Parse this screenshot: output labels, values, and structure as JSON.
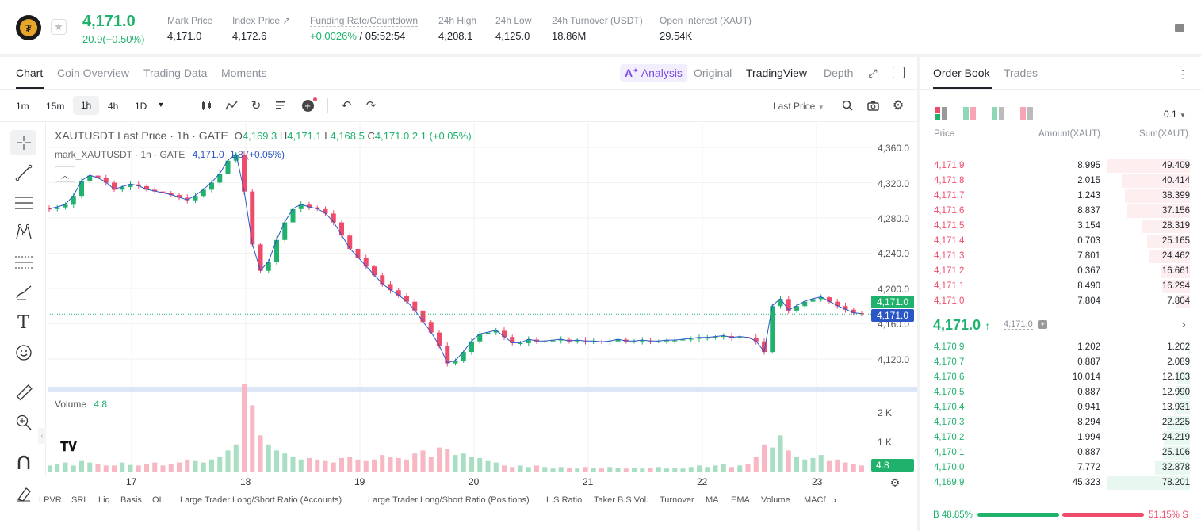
{
  "header": {
    "price": "4,171.0",
    "change": "20.9(+0.50%)",
    "stats": [
      {
        "label": "Mark Price",
        "value": "4,171.0"
      },
      {
        "label": "Index Price",
        "value": "4,172.6"
      },
      {
        "label": "Funding Rate/Countdown",
        "value_rate": "+0.0026%",
        "value_countdown": "/ 05:52:54"
      },
      {
        "label": "24h High",
        "value": "4,208.1"
      },
      {
        "label": "24h Low",
        "value": "4,125.0"
      },
      {
        "label": "24h Turnover (USDT)",
        "value": "18.86M"
      },
      {
        "label": "Open Interest (XAUT)",
        "value": "29.54K"
      }
    ]
  },
  "chart_panel": {
    "tabs": [
      "Chart",
      "Coin Overview",
      "Trading Data",
      "Moments"
    ],
    "views": [
      "Analysis",
      "Original",
      "TradingView",
      "Depth"
    ],
    "intervals": [
      "1m",
      "15m",
      "1h",
      "4h",
      "1D"
    ],
    "price_type": "Last Price",
    "legend_main": {
      "symbol": "XAUTUSDT Last Price · 1h · GATE",
      "o": "4,169.3",
      "h": "4,171.1",
      "l": "4,168.5",
      "c": "4,171.0",
      "chg": "2.1 (+0.05%)"
    },
    "legend_mark": {
      "symbol": "mark_XAUTUSDT · 1h · GATE",
      "val": "4,171.0",
      "chg": "1.8 (+0.05%)"
    },
    "volume_label": "Volume",
    "volume_value": "4.8",
    "price_tag_last": "4,171.0",
    "price_tag_mark": "4,171.0",
    "volume_tag": "4.8",
    "indicators": [
      "LPVR",
      "SRL",
      "Liq",
      "Basis",
      "OI",
      "Large Trader Long/Short Ratio (Accounts)",
      "Large Trader Long/Short Ratio (Positions)",
      "L.S Ratio",
      "Taker B.S Vol.",
      "Turnover",
      "MA",
      "EMA",
      "Volume",
      "MACD"
    ]
  },
  "chart_data": {
    "type": "candlestick",
    "y_ticks": [
      "4,360.0",
      "4,320.0",
      "4,280.0",
      "4,240.0",
      "4,200.0",
      "4,160.0",
      "4,120.0"
    ],
    "ylim": [
      4110,
      4370
    ],
    "x_ticks": [
      "17",
      "18",
      "19",
      "20",
      "21",
      "22",
      "23"
    ],
    "volume_ticks": [
      "2 K",
      "1 K"
    ],
    "close_path": [
      4290,
      4292,
      4295,
      4305,
      4322,
      4328,
      4325,
      4320,
      4312,
      4315,
      4318,
      4316,
      4312,
      4310,
      4308,
      4306,
      4303,
      4300,
      4305,
      4312,
      4320,
      4330,
      4345,
      4352,
      4310,
      4250,
      4220,
      4230,
      4255,
      4275,
      4290,
      4295,
      4292,
      4290,
      4285,
      4275,
      4260,
      4245,
      4235,
      4225,
      4215,
      4205,
      4198,
      4192,
      4185,
      4175,
      4162,
      4150,
      4135,
      4115,
      4118,
      4128,
      4140,
      4148,
      4150,
      4152,
      4145,
      4138,
      4138,
      4142,
      4140,
      4140,
      4141,
      4142,
      4140,
      4141,
      4140,
      4140,
      4139,
      4140,
      4142,
      4140,
      4140,
      4141,
      4140,
      4140,
      4141,
      4141,
      4142,
      4143,
      4144,
      4144,
      4145,
      4146,
      4144,
      4145,
      4144,
      4140,
      4128,
      4180,
      4188,
      4175,
      4180,
      4185,
      4188,
      4190,
      4185,
      4180,
      4176,
      4172,
      4171
    ],
    "volume_path": [
      0.2,
      0.25,
      0.3,
      0.2,
      0.35,
      0.3,
      0.25,
      0.2,
      0.2,
      0.3,
      0.22,
      0.2,
      0.25,
      0.3,
      0.2,
      0.25,
      0.3,
      0.4,
      0.35,
      0.3,
      0.4,
      0.5,
      0.7,
      0.9,
      2.9,
      2.2,
      1.2,
      0.9,
      0.7,
      0.6,
      0.5,
      0.4,
      0.45,
      0.4,
      0.35,
      0.3,
      0.45,
      0.5,
      0.4,
      0.35,
      0.4,
      0.55,
      0.5,
      0.45,
      0.4,
      0.6,
      0.7,
      0.5,
      0.8,
      0.75,
      0.55,
      0.6,
      0.5,
      0.45,
      0.35,
      0.3,
      0.2,
      0.15,
      0.2,
      0.15,
      0.2,
      0.15,
      0.1,
      0.15,
      0.12,
      0.1,
      0.15,
      0.12,
      0.1,
      0.15,
      0.12,
      0.1,
      0.12,
      0.1,
      0.12,
      0.15,
      0.1,
      0.12,
      0.1,
      0.15,
      0.2,
      0.15,
      0.2,
      0.25,
      0.15,
      0.2,
      0.25,
      0.5,
      0.9,
      0.8,
      1.2,
      0.7,
      0.5,
      0.4,
      0.45,
      0.55,
      0.35,
      0.4,
      0.3,
      0.25,
      0.2
    ]
  },
  "order_book": {
    "tabs": [
      "Order Book",
      "Trades"
    ],
    "precision": "0.1",
    "headers": [
      "Price",
      "Amount(XAUT)",
      "Sum(XAUT)"
    ],
    "asks": [
      {
        "p": "4,171.9",
        "a": "8.995",
        "s": "49.409",
        "d": 1.0
      },
      {
        "p": "4,171.8",
        "a": "2.015",
        "s": "40.414",
        "d": 0.82
      },
      {
        "p": "4,171.7",
        "a": "1.243",
        "s": "38.399",
        "d": 0.78
      },
      {
        "p": "4,171.6",
        "a": "8.837",
        "s": "37.156",
        "d": 0.75
      },
      {
        "p": "4,171.5",
        "a": "3.154",
        "s": "28.319",
        "d": 0.57
      },
      {
        "p": "4,171.4",
        "a": "0.703",
        "s": "25.165",
        "d": 0.51
      },
      {
        "p": "4,171.3",
        "a": "7.801",
        "s": "24.462",
        "d": 0.5
      },
      {
        "p": "4,171.2",
        "a": "0.367",
        "s": "16.661",
        "d": 0.34
      },
      {
        "p": "4,171.1",
        "a": "8.490",
        "s": "16.294",
        "d": 0.33
      },
      {
        "p": "4,171.0",
        "a": "7.804",
        "s": "7.804",
        "d": 0.16
      }
    ],
    "mid_price": "4,171.0",
    "mid_mark": "4,171.0",
    "bids": [
      {
        "p": "4,170.9",
        "a": "1.202",
        "s": "1.202",
        "d": 0.02
      },
      {
        "p": "4,170.7",
        "a": "0.887",
        "s": "2.089",
        "d": 0.03
      },
      {
        "p": "4,170.6",
        "a": "10.014",
        "s": "12.103",
        "d": 0.15
      },
      {
        "p": "4,170.5",
        "a": "0.887",
        "s": "12.990",
        "d": 0.17
      },
      {
        "p": "4,170.4",
        "a": "0.941",
        "s": "13.931",
        "d": 0.18
      },
      {
        "p": "4,170.3",
        "a": "8.294",
        "s": "22.225",
        "d": 0.28
      },
      {
        "p": "4,170.2",
        "a": "1.994",
        "s": "24.219",
        "d": 0.31
      },
      {
        "p": "4,170.1",
        "a": "0.887",
        "s": "25.106",
        "d": 0.32
      },
      {
        "p": "4,170.0",
        "a": "7.772",
        "s": "32.878",
        "d": 0.42
      },
      {
        "p": "4,169.9",
        "a": "45.323",
        "s": "78.201",
        "d": 1.0
      }
    ],
    "buy_pct": "B 48.85%",
    "sell_pct": "51.15% S",
    "buy_ratio": 0.4885
  },
  "colors": {
    "up": "#20b26c",
    "down": "#ef4b6a",
    "accent": "#7b4fe0"
  }
}
